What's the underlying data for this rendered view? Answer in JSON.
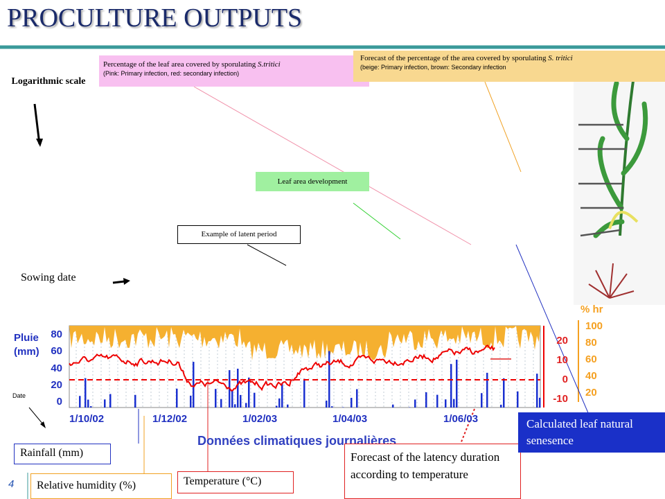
{
  "title": "PROCULTURE OUTPUTS",
  "slide_number": "4",
  "annotations": {
    "log_scale": "Logarithmic scale",
    "pink_box": {
      "text": "Percentage of the leaf area covered by sporulating ",
      "species": "S.tritici",
      "note": "(Pink: Primary infection, red: secondary infection)"
    },
    "beige_box": {
      "text": "Forecast of the percentage of the area covered by sporulating ",
      "species": "S. tritici",
      "note": "(beige: Primary infection, brown: Secondary infection"
    },
    "leaf_area": "Leaf area development",
    "latent": "Example of latent period",
    "sowing": "Sowing date",
    "date": "Date",
    "rainfall": "Rainfall (mm)",
    "humidity": "Relative humidity (%)",
    "temperature": "Temperature (°C)",
    "latency": "Forecast of the latency duration according to temperature",
    "senescence": "Calculated leaf natural senesence"
  },
  "climate_chart": {
    "rain_label": [
      "Pluie",
      "(mm)"
    ],
    "rain_ticks": [
      "80",
      "60",
      "40",
      "20",
      "0"
    ],
    "temp_ticks": [
      "20",
      "10",
      "0",
      "-10"
    ],
    "hr_label": "% hr",
    "hr_ticks": [
      "100",
      "80",
      "60",
      "40",
      "20"
    ],
    "dates": [
      "1/10/02",
      "1/12/02",
      "1/02/03",
      "1/04/03",
      "1/06/03"
    ],
    "x_title": "Données climatiques journalières"
  }
}
